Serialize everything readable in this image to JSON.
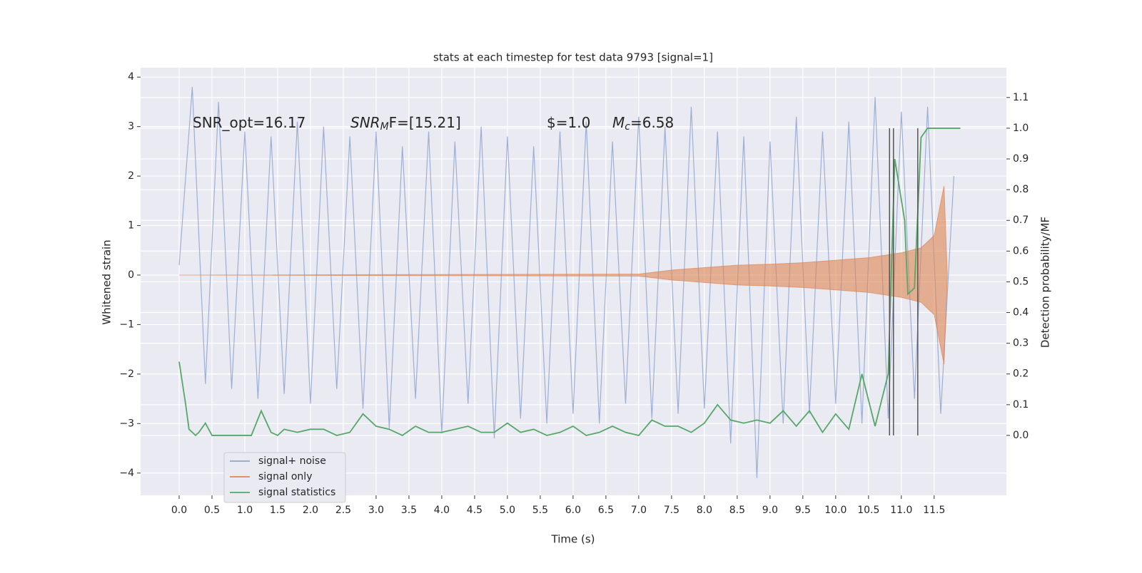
{
  "chart_data": {
    "type": "line",
    "title": "stats at each timestep for test data 9793 [signal=1]",
    "xlabel": "Time (s)",
    "ylabel": "Whitened strain",
    "y2label": "Detection probability/MF",
    "annotations": [
      {
        "text": "SNR_opt=16.17"
      },
      {
        "text": "SNR",
        "sub": "M",
        "rest": "F=[15.21]"
      },
      {
        "text": "$=1.0"
      },
      {
        "text": "M",
        "sub": "c",
        "rest": "=6.58"
      }
    ],
    "xlim": [
      -0.587,
      12.6
    ],
    "ylim": [
      -4.45,
      4.19
    ],
    "y2lim": [
      -0.195,
      1.197
    ],
    "xticks": [
      {
        "value": 0,
        "label": "0.0"
      },
      0.5,
      {
        "value": 1,
        "label": "1.0"
      },
      1.5,
      {
        "value": 2,
        "label": "2.0"
      },
      2.5,
      {
        "value": 3,
        "label": "3.0"
      },
      3.5,
      {
        "value": 4,
        "label": "4.0"
      },
      4.5,
      {
        "value": 5,
        "label": "5.0"
      },
      5.5,
      {
        "value": 6,
        "label": "6.0"
      },
      6.5,
      {
        "value": 7,
        "label": "7.0"
      },
      7.5,
      {
        "value": 8,
        "label": "8.0"
      },
      8.5,
      {
        "value": 9,
        "label": "9.0"
      },
      9.5,
      {
        "value": 10,
        "label": "10.0"
      },
      10.5,
      {
        "value": 11,
        "label": "11.0"
      },
      11.5
    ],
    "yticks": [
      {
        "value": -4,
        "label": "−4"
      },
      {
        "value": -3,
        "label": "−3"
      },
      {
        "value": -2,
        "label": "−2"
      },
      {
        "value": -1,
        "label": "−1"
      },
      0,
      1,
      2,
      3,
      4
    ],
    "y2ticks": [
      {
        "value": 0,
        "label": "0.0"
      },
      0.1,
      0.2,
      0.3,
      0.4,
      0.5,
      0.6,
      0.7,
      0.8,
      0.9,
      {
        "value": 1,
        "label": "1.0"
      },
      1.1
    ],
    "grid": true,
    "legend": "lower left",
    "vlines": {
      "color": "#555555",
      "x": [
        10.82,
        10.88,
        11.25
      ],
      "from": 0,
      "to": 1
    },
    "series": [
      {
        "name": "signal+ noise",
        "color": "#8fa5d1",
        "x": [
          0,
          0.2,
          0.4,
          0.6,
          0.8,
          1,
          1.2,
          1.4,
          1.6,
          1.8,
          2,
          2.2,
          2.4,
          2.6,
          2.8,
          3,
          3.2,
          3.4,
          3.6,
          3.8,
          4,
          4.2,
          4.4,
          4.6,
          4.8,
          5,
          5.2,
          5.4,
          5.6,
          5.8,
          6,
          6.2,
          6.4,
          6.6,
          6.8,
          7,
          7.2,
          7.4,
          7.6,
          7.8,
          8,
          8.2,
          8.4,
          8.6,
          8.8,
          9,
          9.2,
          9.4,
          9.6,
          9.8,
          10,
          10.2,
          10.4,
          10.6,
          10.8,
          11,
          11.2,
          11.4,
          11.6,
          11.8
        ],
        "values": [
          0.2,
          3.8,
          -2.2,
          3.5,
          -2.3,
          2.9,
          -2.5,
          2.8,
          -2.4,
          3.1,
          -2.6,
          3.0,
          -2.3,
          2.8,
          -2.7,
          2.9,
          -3.1,
          2.6,
          -2.5,
          2.9,
          -3.2,
          2.7,
          -2.6,
          3.0,
          -3.3,
          2.8,
          -2.9,
          2.6,
          -3.0,
          2.9,
          -2.8,
          3.1,
          -3.0,
          2.7,
          -2.6,
          3.2,
          -2.9,
          3.0,
          -2.8,
          3.4,
          -2.7,
          2.9,
          -3.4,
          2.8,
          -4.1,
          2.7,
          -3.0,
          3.2,
          -2.8,
          2.9,
          -2.6,
          3.1,
          -3.0,
          3.6,
          -2.9,
          3.3,
          -2.5,
          3.4,
          -2.8,
          2.0
        ]
      },
      {
        "name": "signal only",
        "color": "#dd8452",
        "x": [
          0,
          7,
          7.5,
          8,
          8.5,
          9,
          9.5,
          10,
          10.5,
          11,
          11.3,
          11.5,
          11.65,
          11.7
        ],
        "values": [
          0,
          0.02,
          0.1,
          0.15,
          0.2,
          0.22,
          0.25,
          0.3,
          0.35,
          0.45,
          0.55,
          0.8,
          1.8,
          0
        ]
      },
      {
        "name": "signal statistics",
        "color": "#55a868",
        "axis": "y2",
        "x": [
          0,
          0.1,
          0.15,
          0.25,
          0.3,
          0.4,
          0.5,
          0.6,
          0.8,
          1.0,
          1.1,
          1.25,
          1.4,
          1.5,
          1.6,
          1.8,
          2.0,
          2.2,
          2.4,
          2.6,
          2.8,
          3.0,
          3.2,
          3.4,
          3.6,
          3.8,
          4.0,
          4.2,
          4.4,
          4.6,
          4.8,
          5.0,
          5.2,
          5.4,
          5.6,
          5.8,
          6.0,
          6.2,
          6.4,
          6.6,
          6.8,
          7.0,
          7.2,
          7.4,
          7.6,
          7.8,
          8.0,
          8.2,
          8.4,
          8.6,
          8.8,
          9.0,
          9.2,
          9.4,
          9.6,
          9.8,
          10.0,
          10.2,
          10.4,
          10.6,
          10.8,
          10.9,
          11.05,
          11.1,
          11.2,
          11.3,
          11.4,
          11.9
        ],
        "values": [
          0.24,
          0.1,
          0.02,
          0.0,
          0.01,
          0.04,
          0.0,
          0.0,
          0.0,
          0.0,
          0.0,
          0.08,
          0.01,
          0.0,
          0.02,
          0.01,
          0.02,
          0.02,
          0.0,
          0.01,
          0.07,
          0.03,
          0.02,
          0.0,
          0.03,
          0.01,
          0.01,
          0.02,
          0.03,
          0.01,
          0.01,
          0.04,
          0.01,
          0.02,
          0.0,
          0.01,
          0.03,
          0.0,
          0.01,
          0.03,
          0.01,
          0.0,
          0.05,
          0.03,
          0.03,
          0.01,
          0.04,
          0.1,
          0.05,
          0.04,
          0.05,
          0.04,
          0.08,
          0.03,
          0.08,
          0.01,
          0.07,
          0.02,
          0.2,
          0.03,
          0.2,
          0.9,
          0.7,
          0.46,
          0.48,
          0.97,
          1.0,
          1.0
        ]
      }
    ]
  }
}
